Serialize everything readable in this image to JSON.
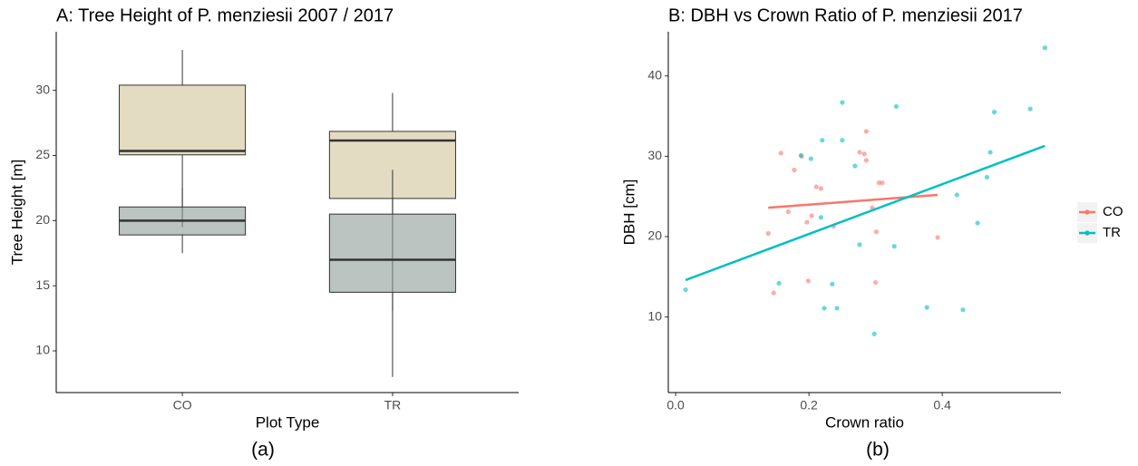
{
  "chart_data": [
    {
      "type": "box",
      "title": "A: Tree Height of P. menziesii 2007 / 2017",
      "x_label": "Plot Type",
      "y_label": "Tree Height [m]",
      "caption": "(a)",
      "categories": [
        "CO",
        "TR"
      ],
      "series": [
        {
          "color": "#e3dcc2",
          "boxes": [
            {
              "whisker_low": 19.5,
              "q1": 25.05,
              "median": 25.35,
              "q3": 30.4,
              "whisker_high": 33.1
            },
            {
              "whisker_low": 13.1,
              "q1": 21.7,
              "median": 26.15,
              "q3": 26.85,
              "whisker_high": 29.8
            }
          ]
        },
        {
          "color": "#8e9c97",
          "boxes": [
            {
              "whisker_low": 17.5,
              "q1": 18.9,
              "median": 20.0,
              "q3": 21.05,
              "whisker_high": 22.5
            },
            {
              "whisker_low": 8.0,
              "q1": 14.5,
              "median": 17.0,
              "q3": 20.5,
              "whisker_high": 23.9
            }
          ]
        }
      ],
      "ylim": [
        6.8,
        34.5
      ],
      "yticks": [
        10,
        15,
        20,
        25,
        30
      ],
      "grid": false
    },
    {
      "type": "scatter",
      "title": "B: DBH vs Crown Ratio of P. menziesii 2017",
      "x_label": "Crown ratio",
      "y_label": "DBH [cm]",
      "caption": "(b)",
      "series": [
        {
          "name": "CO",
          "color": "#f8766d",
          "x": [
            0.139,
            0.147,
            0.158,
            0.169,
            0.178,
            0.189,
            0.197,
            0.199,
            0.204,
            0.211,
            0.218,
            0.237,
            0.276,
            0.283,
            0.286,
            0.286,
            0.295,
            0.301,
            0.305,
            0.31,
            0.3,
            0.393
          ],
          "y": [
            20.4,
            13.0,
            30.4,
            23.1,
            28.3,
            30.0,
            21.8,
            14.5,
            22.6,
            26.2,
            26.0,
            21.3,
            30.5,
            30.3,
            33.1,
            29.5,
            23.6,
            20.6,
            26.7,
            26.7,
            14.3,
            19.9
          ],
          "fit": {
            "x": [
              0.139,
              0.393
            ],
            "y": [
              23.6,
              25.2
            ]
          }
        },
        {
          "name": "TR",
          "color": "#00bfc4",
          "x": [
            0.015,
            0.155,
            0.188,
            0.203,
            0.218,
            0.22,
            0.223,
            0.235,
            0.242,
            0.25,
            0.25,
            0.269,
            0.276,
            0.298,
            0.328,
            0.331,
            0.377,
            0.422,
            0.431,
            0.453,
            0.467,
            0.472,
            0.478,
            0.532,
            0.554
          ],
          "y": [
            13.4,
            14.2,
            30.1,
            29.7,
            22.4,
            32.0,
            11.1,
            14.1,
            11.1,
            36.7,
            32.0,
            28.8,
            19.0,
            7.9,
            18.8,
            36.2,
            11.2,
            25.2,
            10.9,
            21.7,
            27.4,
            30.5,
            35.5,
            35.9,
            43.5
          ],
          "fit": {
            "x": [
              0.015,
              0.554
            ],
            "y": [
              14.6,
              31.3
            ]
          }
        }
      ],
      "xlim": [
        -0.011,
        0.578
      ],
      "xticks": [
        {
          "value": 0,
          "label": "0.0"
        },
        0.2,
        0.4
      ],
      "ylim": [
        0.6,
        45.5
      ],
      "yticks": [
        10,
        20,
        30,
        40
      ],
      "grid": false,
      "legend": "right"
    }
  ]
}
